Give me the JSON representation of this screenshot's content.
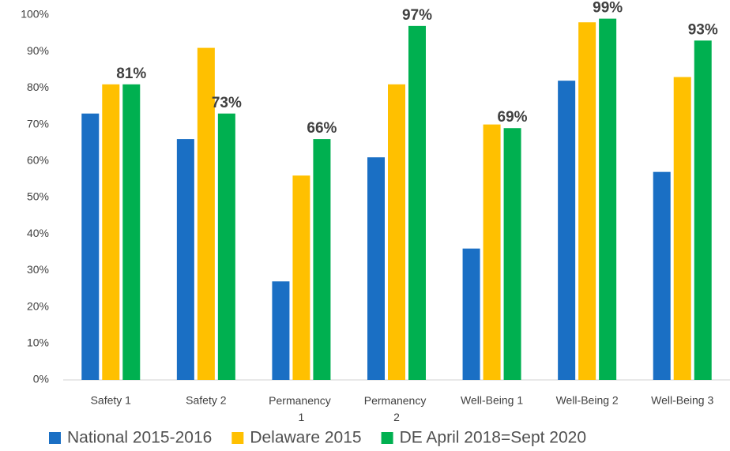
{
  "chart_data": {
    "type": "bar",
    "categories": [
      "Safety 1",
      "Safety 2",
      "Permanency 1",
      "Permanency 2",
      "Well-Being 1",
      "Well-Being 2",
      "Well-Being 3"
    ],
    "series": [
      {
        "name": "National 2015-2016",
        "color": "#1a6fc4",
        "values": [
          73,
          66,
          27,
          61,
          36,
          82,
          57
        ]
      },
      {
        "name": "Delaware 2015",
        "color": "#ffc000",
        "values": [
          81,
          91,
          56,
          81,
          70,
          98,
          83
        ]
      },
      {
        "name": "DE April 2018=Sept 2020",
        "color": "#00b050",
        "values": [
          81,
          73,
          66,
          97,
          69,
          99,
          93
        ],
        "value_labels": [
          "81%",
          "73%",
          "66%",
          "97%",
          "69%",
          "99%",
          "93%"
        ]
      }
    ],
    "ylim": [
      0,
      100
    ],
    "yticks": [
      {
        "value": 0,
        "label": "0%"
      },
      {
        "value": 10,
        "label": "10%"
      },
      {
        "value": 20,
        "label": "20%"
      },
      {
        "value": 30,
        "label": "30%"
      },
      {
        "value": 40,
        "label": "40%"
      },
      {
        "value": 50,
        "label": "50%"
      },
      {
        "value": 60,
        "label": "60%"
      },
      {
        "value": 70,
        "label": "70%"
      },
      {
        "value": 80,
        "label": "80%"
      },
      {
        "value": 90,
        "label": "90%"
      },
      {
        "value": 100,
        "label": "100%"
      }
    ],
    "grid": false,
    "legend": "bottom"
  }
}
